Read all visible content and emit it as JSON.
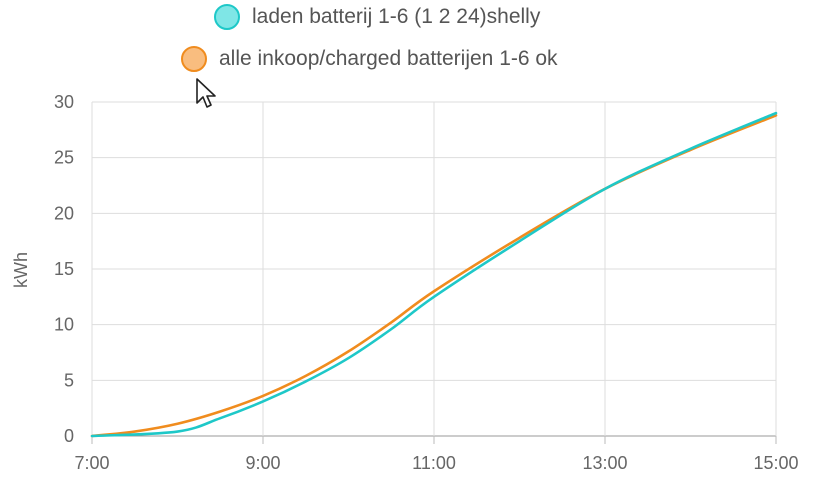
{
  "legend": [
    {
      "label": "laden batterij 1-6 (1 2 24)shelly",
      "color": "#1ec8c8",
      "fill": "#7fe6e6"
    },
    {
      "label": "alle inkoop/charged batterijen 1-6 ok",
      "color": "#f08c1e",
      "fill": "#f9bd7f"
    }
  ],
  "chart_data": {
    "type": "line",
    "ylabel": "kWh",
    "ylim": [
      0,
      30
    ],
    "y_ticks": [
      "0",
      "5",
      "10",
      "15",
      "20",
      "25",
      "30"
    ],
    "xlim": [
      "7:00",
      "15:00"
    ],
    "x_ticks": [
      "7:00",
      "9:00",
      "11:00",
      "13:00",
      "15:00"
    ],
    "grid": true,
    "legend_position": "top",
    "series": [
      {
        "name": "laden batterij 1-6 (1 2 24)shelly",
        "color": "#1ec8c8",
        "x": [
          "7:00",
          "8:00",
          "8:30",
          "9:00",
          "9:30",
          "10:00",
          "10:30",
          "11:00",
          "12:00",
          "13:00",
          "14:00",
          "15:00"
        ],
        "y": [
          0,
          0.4,
          1.6,
          3.1,
          4.9,
          7.0,
          9.6,
          12.5,
          17.5,
          22.2,
          25.8,
          29.0
        ]
      },
      {
        "name": "alle inkoop/charged batterijen 1-6 ok",
        "color": "#f08c1e",
        "x": [
          "7:00",
          "7:30",
          "8:00",
          "8:30",
          "9:00",
          "9:30",
          "10:00",
          "10:30",
          "11:00",
          "12:00",
          "13:00",
          "14:00",
          "15:00"
        ],
        "y": [
          0,
          0.4,
          1.1,
          2.2,
          3.6,
          5.4,
          7.6,
          10.2,
          13.0,
          17.8,
          22.2,
          25.7,
          28.8
        ]
      }
    ]
  }
}
